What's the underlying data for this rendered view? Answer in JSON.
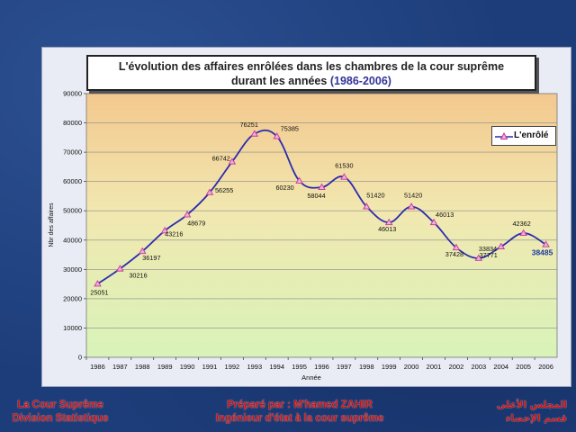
{
  "title": {
    "main": "L'évolution des affaires enrôlées dans les chambres de la cour suprême",
    "line2": "durant les années",
    "years": "(1986-2006)"
  },
  "footer": {
    "left_line1": "La Cour Suprême",
    "left_line2": "Division Statistique",
    "mid_line1": "Préparé par : M'hamed ZAHIR",
    "mid_line2": "Ingénieur d'état à la cour suprême",
    "right_line1": "المجلس الأعلى",
    "right_line2": "قسم الإحصاء"
  },
  "colors": {
    "line": "#2b2bb0",
    "marker": "#cc3399",
    "last_label": "#1a3aa0"
  },
  "chart_data": {
    "type": "line",
    "xlabel": "Année",
    "ylabel": "Nbr des affaires",
    "ylim": [
      0,
      90000
    ],
    "yticks": [
      0,
      10000,
      20000,
      30000,
      40000,
      50000,
      60000,
      70000,
      80000,
      90000
    ],
    "grid": true,
    "legend_position": "right",
    "categories": [
      "1986",
      "1987",
      "1988",
      "1989",
      "1990",
      "1991",
      "1992",
      "1993",
      "1994",
      "1995",
      "1996",
      "1997",
      "1998",
      "1999",
      "2000",
      "2001",
      "2002",
      "2003",
      "2004",
      "2005",
      "2006"
    ],
    "series": [
      {
        "name": "L'enrôlé",
        "values": [
          25051,
          30216,
          36197,
          43216,
          48679,
          56255,
          66742,
          76251,
          75385,
          60230,
          58044,
          61530,
          51420,
          46013,
          51420,
          46013,
          37428,
          33834,
          37771,
          42362,
          38485
        ]
      }
    ]
  }
}
